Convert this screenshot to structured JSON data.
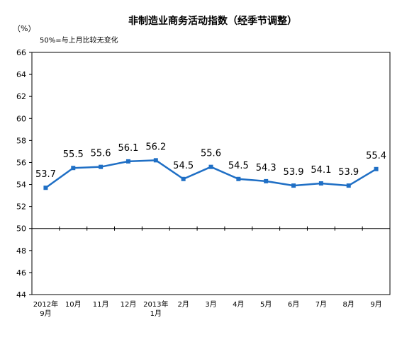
{
  "chart_data": {
    "type": "line",
    "title": "非制造业商务活动指数（经季节调整）",
    "unit_label": "（%）",
    "note": "50%=与上月比较无变化",
    "ylim": [
      44,
      66
    ],
    "y_ticks": [
      "44",
      "46",
      "48",
      "50",
      "52",
      "54",
      "56",
      "58",
      "60",
      "62",
      "64",
      "66"
    ],
    "reference_line": 50,
    "categories": [
      [
        "2012年",
        "9月"
      ],
      [
        "10月"
      ],
      [
        "11月"
      ],
      [
        "12月"
      ],
      [
        "2013年",
        "1月"
      ],
      [
        "2月"
      ],
      [
        "3月"
      ],
      [
        "4月"
      ],
      [
        "5月"
      ],
      [
        "6月"
      ],
      [
        "7月"
      ],
      [
        "8月"
      ],
      [
        "9月"
      ]
    ],
    "series": [
      {
        "values": [
          53.7,
          55.5,
          55.6,
          56.1,
          56.2,
          54.5,
          55.6,
          54.5,
          54.3,
          53.9,
          54.1,
          53.9,
          55.4
        ],
        "labels": [
          "53.7",
          "55.5",
          "55.6",
          "56.1",
          "56.2",
          "54.5",
          "55.6",
          "54.5",
          "54.3",
          "53.9",
          "54.1",
          "53.9",
          "55.4"
        ]
      }
    ],
    "colors": {
      "line": "#1f6fc5",
      "marker": "#1f6fc5",
      "axis": "#000000"
    },
    "grid": false,
    "legend": "none"
  }
}
